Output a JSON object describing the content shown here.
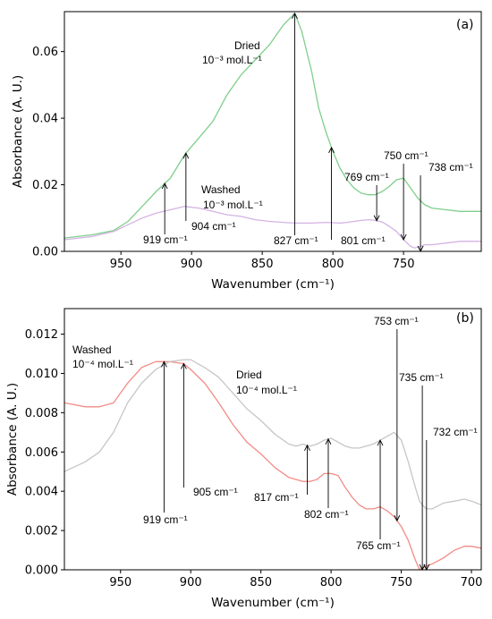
{
  "chart_data": [
    {
      "type": "line",
      "panel_label": "(a)",
      "xlabel": "Wavenumber (cm⁻¹)",
      "ylabel": "Absorbance  (A. U.)",
      "xlim": [
        990,
        695
      ],
      "ylim": [
        0.0,
        0.072
      ],
      "xticks": [
        950,
        900,
        850,
        800,
        750
      ],
      "yticks": [
        0.0,
        0.02,
        0.04,
        0.06
      ],
      "ytick_labels": [
        "0.00",
        "0.02",
        "0.04",
        "0.06"
      ],
      "series": [
        {
          "color": "#7fcf8c",
          "x": [
            990,
            970,
            955,
            945,
            935,
            925,
            915,
            905,
            895,
            885,
            875,
            865,
            855,
            845,
            835,
            827,
            822,
            815,
            810,
            805,
            800,
            795,
            790,
            785,
            780,
            775,
            770,
            765,
            760,
            755,
            750,
            745,
            740,
            735,
            730,
            720,
            710,
            695
          ],
          "y": [
            0.004,
            0.005,
            0.0063,
            0.009,
            0.0135,
            0.018,
            0.022,
            0.029,
            0.034,
            0.039,
            0.047,
            0.053,
            0.0575,
            0.062,
            0.068,
            0.0715,
            0.066,
            0.054,
            0.043,
            0.036,
            0.03,
            0.025,
            0.0215,
            0.019,
            0.0175,
            0.017,
            0.017,
            0.018,
            0.0195,
            0.0215,
            0.022,
            0.019,
            0.016,
            0.014,
            0.013,
            0.0125,
            0.012,
            0.012
          ]
        },
        {
          "color": "#d4b3e3",
          "x": [
            990,
            970,
            955,
            945,
            935,
            925,
            915,
            905,
            895,
            885,
            875,
            865,
            855,
            845,
            835,
            827,
            815,
            805,
            800,
            795,
            790,
            785,
            780,
            775,
            770,
            765,
            760,
            755,
            750,
            745,
            742,
            738,
            735,
            730,
            720,
            710,
            695
          ],
          "y": [
            0.0035,
            0.0045,
            0.006,
            0.008,
            0.01,
            0.0115,
            0.0125,
            0.0135,
            0.013,
            0.012,
            0.011,
            0.0105,
            0.0095,
            0.009,
            0.0087,
            0.0085,
            0.0085,
            0.0087,
            0.0086,
            0.0085,
            0.0087,
            0.009,
            0.0093,
            0.0095,
            0.0093,
            0.0088,
            0.0075,
            0.006,
            0.0035,
            0.0015,
            0.001,
            0.0015,
            0.002,
            0.002,
            0.0025,
            0.003,
            0.003
          ]
        }
      ],
      "annotations": [
        {
          "text": "Dried",
          "sub": "10⁻³ mol.L⁻¹"
        },
        {
          "text": "Washed",
          "sub": "10⁻³ mol.L⁻¹"
        },
        {
          "text": "919 cm⁻¹",
          "x": 919
        },
        {
          "text": "904 cm⁻¹",
          "x": 904
        },
        {
          "text": "827 cm⁻¹",
          "x": 827
        },
        {
          "text": "801 cm⁻¹",
          "x": 801
        },
        {
          "text": "769 cm⁻¹",
          "x": 769
        },
        {
          "text": "750 cm⁻¹",
          "x": 750
        },
        {
          "text": "738 cm⁻¹",
          "x": 738
        }
      ]
    },
    {
      "type": "line",
      "panel_label": "(b)",
      "xlabel": "Wavenumber (cm⁻¹)",
      "ylabel": "Absorbance  (A. U.)",
      "xlim": [
        990,
        693
      ],
      "ylim": [
        0.0,
        0.0133
      ],
      "xticks": [
        950,
        900,
        850,
        800,
        750,
        700
      ],
      "yticks": [
        0.0,
        0.002,
        0.004,
        0.006,
        0.008,
        0.01,
        0.012
      ],
      "ytick_labels": [
        "0.000",
        "0.002",
        "0.004",
        "0.006",
        "0.008",
        "0.010",
        "0.012"
      ],
      "series": [
        {
          "color": "#f28c86",
          "x": [
            990,
            975,
            965,
            955,
            945,
            935,
            925,
            915,
            905,
            900,
            890,
            880,
            870,
            860,
            850,
            840,
            830,
            820,
            815,
            810,
            805,
            800,
            795,
            790,
            785,
            780,
            775,
            770,
            765,
            760,
            755,
            750,
            745,
            740,
            737,
            735,
            732,
            728,
            720,
            712,
            705,
            700,
            693
          ],
          "y": [
            0.0085,
            0.0083,
            0.0083,
            0.0085,
            0.0095,
            0.0103,
            0.0106,
            0.0106,
            0.0105,
            0.0102,
            0.0095,
            0.0085,
            0.0074,
            0.0065,
            0.0059,
            0.0052,
            0.0047,
            0.0045,
            0.0045,
            0.0046,
            0.0049,
            0.0049,
            0.0048,
            0.0042,
            0.0037,
            0.0033,
            0.0031,
            0.0031,
            0.0032,
            0.003,
            0.0027,
            0.0022,
            0.0015,
            0.0005,
            0.0,
            0.0001,
            0.0002,
            0.0003,
            0.0006,
            0.001,
            0.0012,
            0.0012,
            0.0011
          ]
        },
        {
          "color": "#c6c6c6",
          "x": [
            990,
            975,
            965,
            955,
            945,
            935,
            925,
            915,
            905,
            900,
            890,
            880,
            870,
            860,
            850,
            840,
            830,
            825,
            820,
            815,
            810,
            805,
            800,
            795,
            790,
            785,
            780,
            775,
            770,
            765,
            760,
            755,
            750,
            745,
            740,
            737,
            735,
            732,
            728,
            720,
            712,
            705,
            700,
            693
          ],
          "y": [
            0.005,
            0.0055,
            0.006,
            0.007,
            0.0085,
            0.0095,
            0.0102,
            0.0106,
            0.0107,
            0.0107,
            0.0103,
            0.0098,
            0.009,
            0.0082,
            0.0076,
            0.0069,
            0.0064,
            0.0063,
            0.0064,
            0.0063,
            0.0064,
            0.0066,
            0.0067,
            0.0065,
            0.0063,
            0.0062,
            0.0062,
            0.0063,
            0.0064,
            0.0066,
            0.0068,
            0.007,
            0.0066,
            0.0055,
            0.0042,
            0.0035,
            0.0033,
            0.0031,
            0.0031,
            0.0034,
            0.0035,
            0.0036,
            0.0035,
            0.0033
          ]
        }
      ],
      "annotations": [
        {
          "text": "Washed",
          "sub": "10⁻⁴ mol.L⁻¹"
        },
        {
          "text": "Dried",
          "sub": "10⁻⁴ mol.L⁻¹"
        },
        {
          "text": "919 cm⁻¹",
          "x": 919
        },
        {
          "text": "905 cm⁻¹",
          "x": 905
        },
        {
          "text": "817 cm⁻¹",
          "x": 817
        },
        {
          "text": "802 cm⁻¹",
          "x": 802
        },
        {
          "text": "765 cm⁻¹",
          "x": 765
        },
        {
          "text": "753 cm⁻¹",
          "x": 753
        },
        {
          "text": "735 cm⁻¹",
          "x": 735
        },
        {
          "text": "732 cm⁻¹",
          "x": 732
        }
      ]
    }
  ]
}
